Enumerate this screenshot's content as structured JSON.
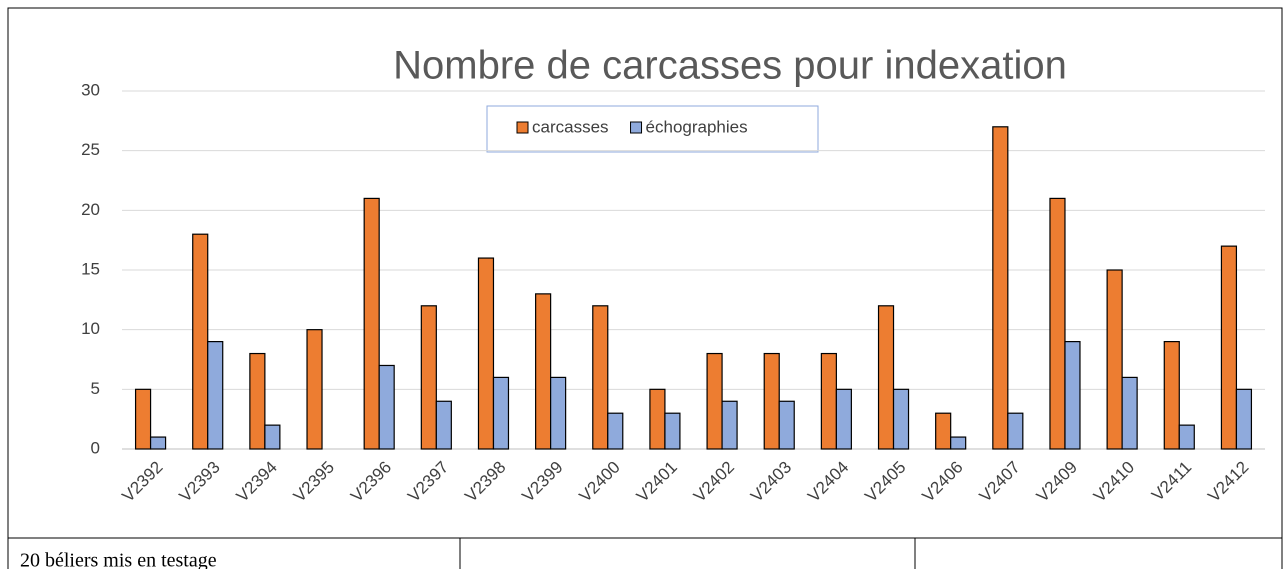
{
  "chart_data": {
    "type": "bar",
    "title": "Nombre de carcasses pour indexation",
    "categories": [
      "V2392",
      "V2393",
      "V2394",
      "V2395",
      "V2396",
      "V2397",
      "V2398",
      "V2399",
      "V2400",
      "V2401",
      "V2402",
      "V2403",
      "V2404",
      "V2405",
      "V2406",
      "V2407",
      "V2409",
      "V2410",
      "V2411",
      "V2412"
    ],
    "series": [
      {
        "name": "carcasses",
        "color": "#ed7d31",
        "values": [
          5,
          18,
          8,
          10,
          21,
          12,
          16,
          13,
          12,
          5,
          8,
          8,
          8,
          12,
          3,
          27,
          21,
          15,
          9,
          17
        ]
      },
      {
        "name": "échographies",
        "color": "#8faadc",
        "values": [
          1,
          9,
          2,
          0,
          7,
          4,
          6,
          6,
          3,
          3,
          4,
          4,
          5,
          5,
          1,
          3,
          9,
          6,
          2,
          5
        ]
      }
    ],
    "ylim": [
      0,
      30
    ],
    "yticks": [
      0,
      5,
      10,
      15,
      20,
      25,
      30
    ],
    "grid": true,
    "legend": "top"
  },
  "table": {
    "cell": "20 béliers mis en testage"
  }
}
